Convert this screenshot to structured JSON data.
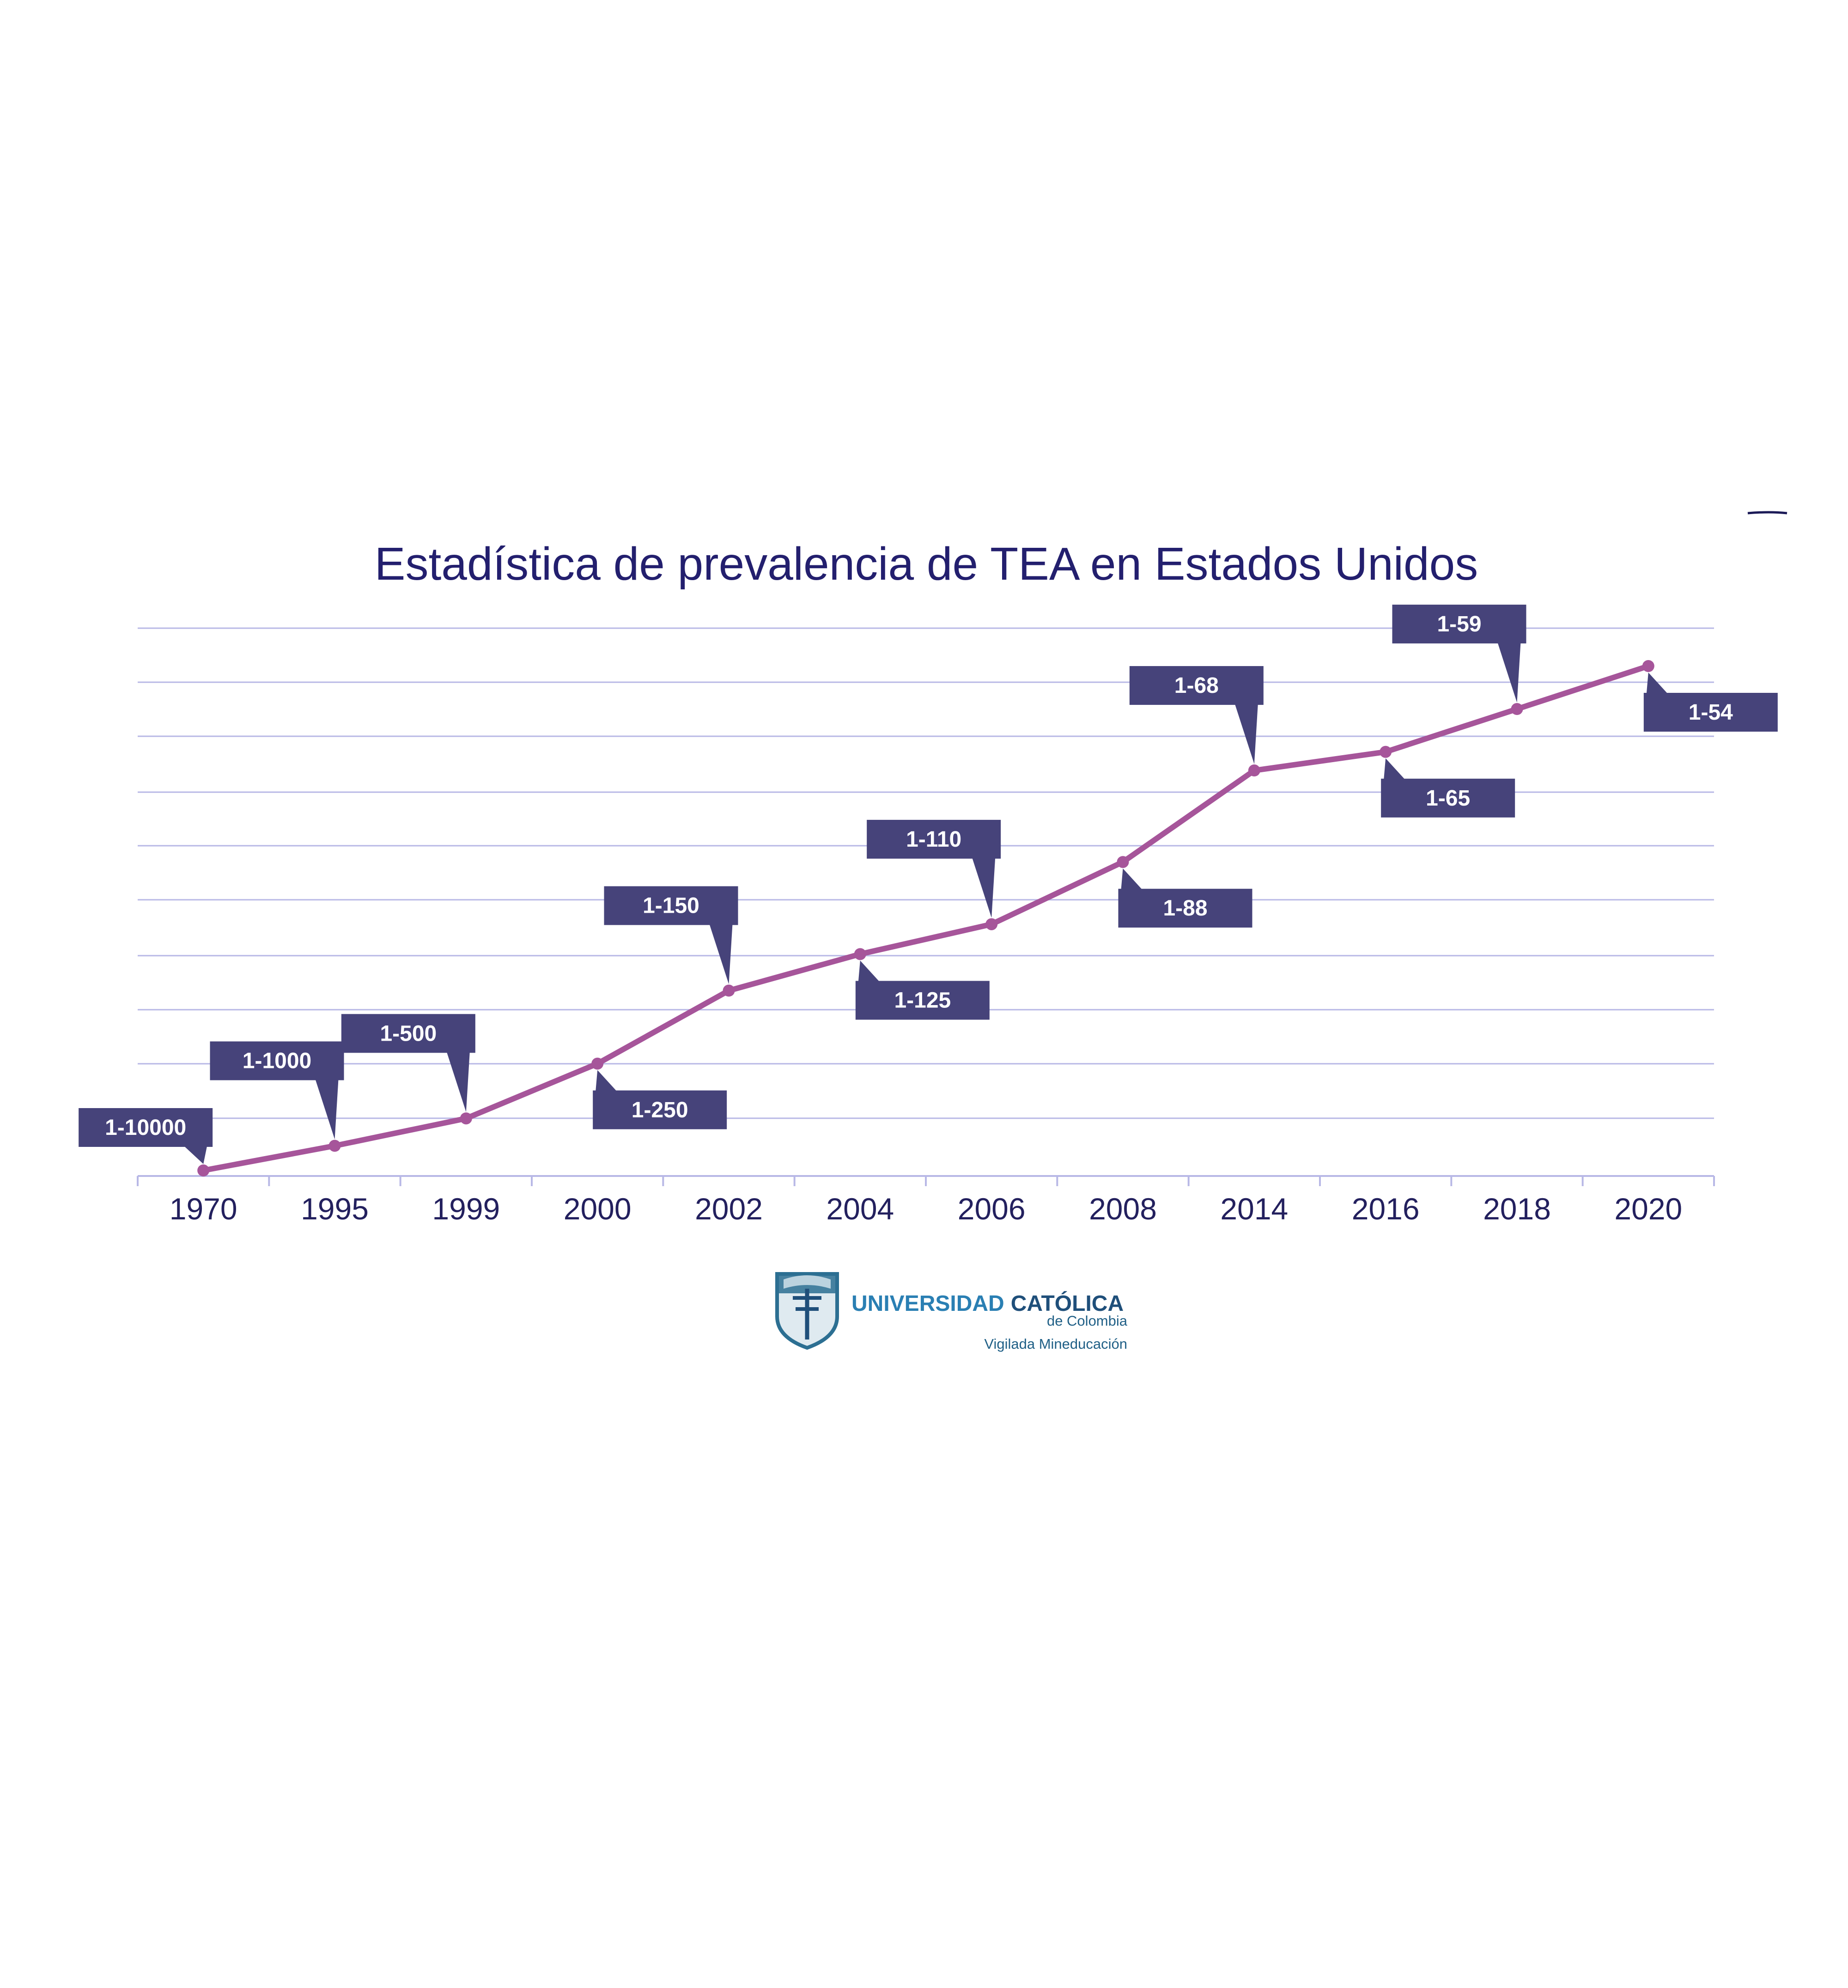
{
  "chart_data": {
    "type": "line",
    "title": "Estadística de prevalencia de TEA en Estados Unidos",
    "categories": [
      "1970",
      "1995",
      "1999",
      "2000",
      "2002",
      "2004",
      "2006",
      "2008",
      "2014",
      "2016",
      "2018",
      "2020"
    ],
    "series": [
      {
        "data_labels": [
          "1-10000",
          "1-1000",
          "1-500",
          "1-250",
          "1-150",
          "1-125",
          "1-110",
          "1-88",
          "1-68",
          "1-65",
          "1-59",
          "1-54"
        ]
      }
    ],
    "y_axis": {
      "tick_labels": false
    },
    "grid": true,
    "legend": "none",
    "colors": {
      "line": "#a6559a",
      "callout": "#46437a",
      "grid": "#b8b8e6",
      "axis_text": "#23205e",
      "title": "#231f6e"
    }
  },
  "logo": {
    "name_part1": "UNIVERSIDAD",
    "name_part2": "CATÓLICA",
    "sub": "de Colombia",
    "tagline": "Vigilada Mineducación",
    "colors": {
      "part1": "#2a7fb3",
      "part2": "#1f4f7a",
      "shield": "#2c6f92"
    }
  }
}
